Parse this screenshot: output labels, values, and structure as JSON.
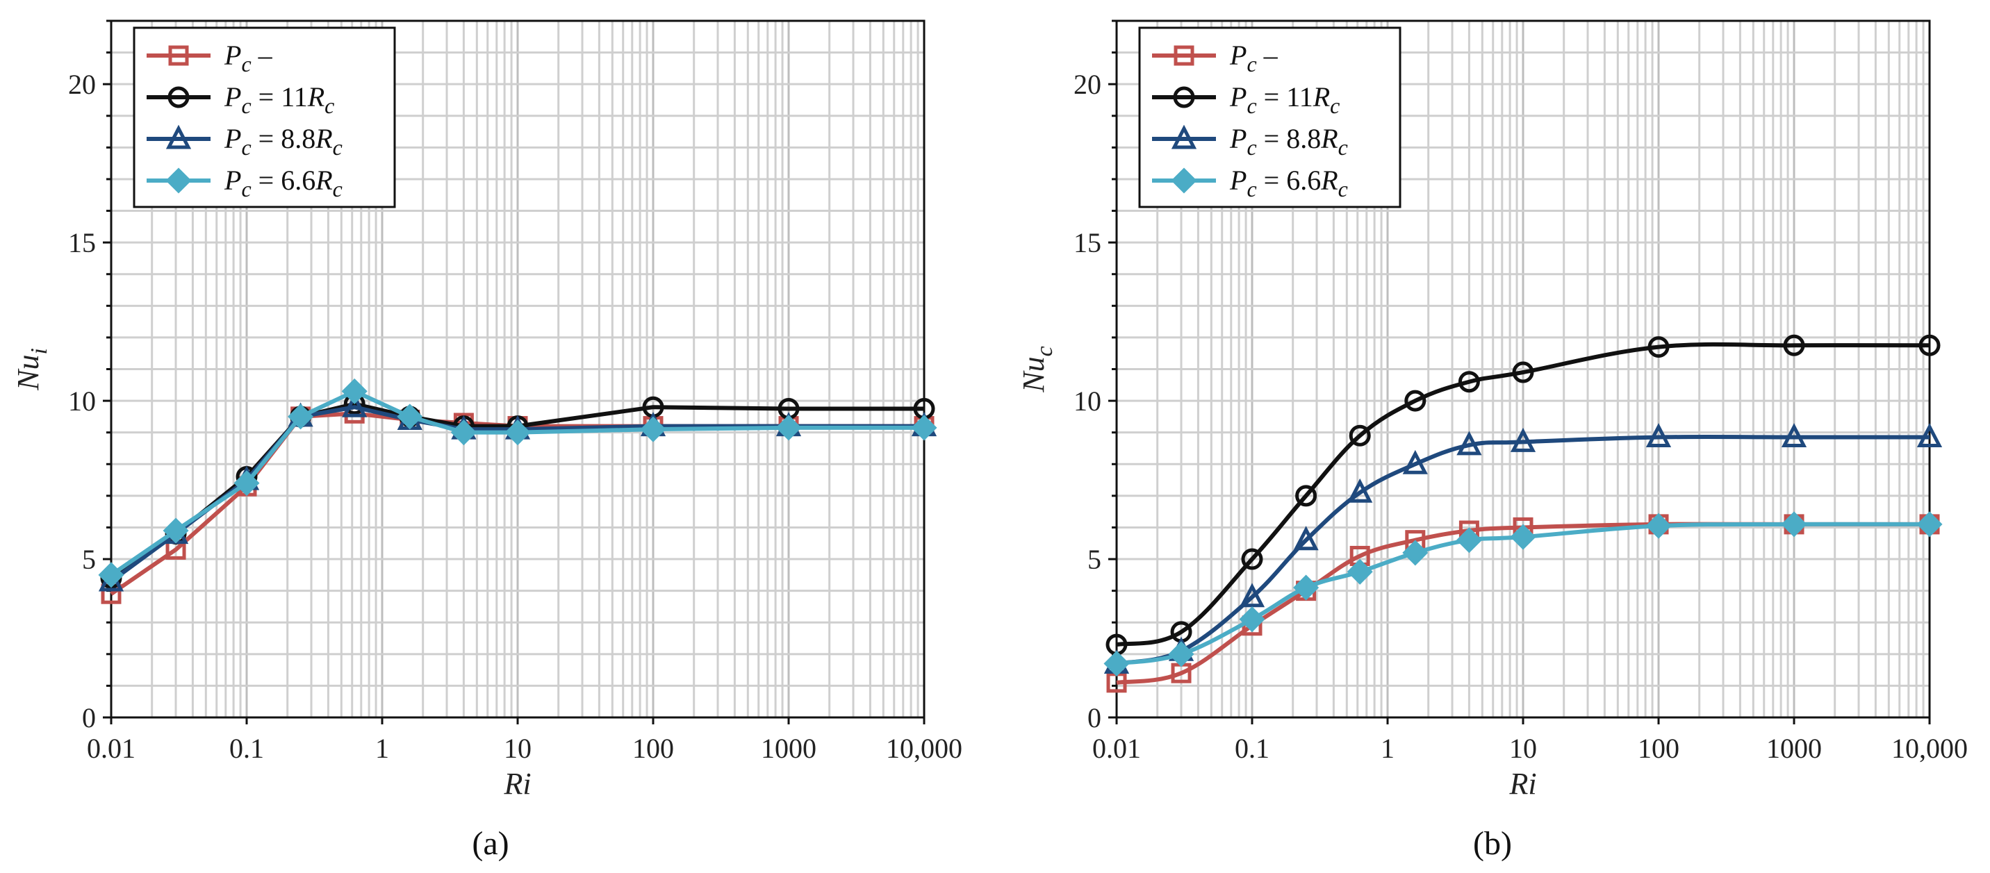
{
  "chart_data": [
    {
      "type": "line",
      "panel_label": "(a)",
      "xscale": "log",
      "xlabel": "Ri",
      "ylabel": "Nu",
      "ylabel_sub": "i",
      "xlim": [
        0.01,
        10000
      ],
      "ylim": [
        0,
        22
      ],
      "yticks": [
        0,
        5,
        10,
        15,
        20
      ],
      "xticks": [
        0.01,
        0.1,
        1,
        10,
        100,
        1000,
        10000
      ],
      "xtick_labels": [
        "0.01",
        "0.1",
        "1",
        "10",
        "100",
        "1000",
        "10,000"
      ],
      "grid": true,
      "legend_position": "top-left",
      "x": [
        0.01,
        0.03,
        0.1,
        0.25,
        0.625,
        1.6,
        4,
        10,
        100,
        1000,
        10000
      ],
      "series": [
        {
          "name": "P_c -",
          "label_main": "P",
          "label_sub": "c",
          "label_rest": " –",
          "color": "#c0504d",
          "marker": "square",
          "values": [
            3.9,
            5.3,
            7.3,
            9.5,
            9.6,
            9.4,
            9.3,
            9.2,
            9.2,
            9.2,
            9.2
          ]
        },
        {
          "name": "P_c = 11R_c",
          "label_main": "P",
          "label_sub": "c",
          "label_rest": " = 11R",
          "label_sub2": "c",
          "color": "#111111",
          "marker": "circle",
          "values": [
            4.4,
            5.8,
            7.6,
            9.5,
            9.9,
            9.5,
            9.2,
            9.2,
            9.8,
            9.75,
            9.75
          ]
        },
        {
          "name": "P_c = 8.8R_c",
          "label_main": "P",
          "label_sub": "c",
          "label_rest": " = 8.8R",
          "label_sub2": "c",
          "color": "#1f497d",
          "marker": "triangle",
          "values": [
            4.3,
            5.8,
            7.5,
            9.5,
            9.8,
            9.4,
            9.1,
            9.1,
            9.2,
            9.2,
            9.2
          ]
        },
        {
          "name": "P_c = 6.6R_c",
          "label_main": "P",
          "label_sub": "c",
          "label_rest": " = 6.6R",
          "label_sub2": "c",
          "color": "#4bacc6",
          "marker": "diamond",
          "values": [
            4.5,
            5.9,
            7.4,
            9.5,
            10.3,
            9.5,
            9.0,
            9.0,
            9.1,
            9.15,
            9.15
          ]
        }
      ]
    },
    {
      "type": "line",
      "panel_label": "(b)",
      "xscale": "log",
      "xlabel": "Ri",
      "ylabel": "Nu",
      "ylabel_sub": "c",
      "xlim": [
        0.01,
        10000
      ],
      "ylim": [
        0,
        22
      ],
      "yticks": [
        0,
        5,
        10,
        15,
        20
      ],
      "xticks": [
        0.01,
        0.1,
        1,
        10,
        100,
        1000,
        10000
      ],
      "xtick_labels": [
        "0.01",
        "0.1",
        "1",
        "10",
        "100",
        "1000",
        "10,000"
      ],
      "grid": true,
      "legend_position": "top-left",
      "x": [
        0.01,
        0.03,
        0.1,
        0.25,
        0.625,
        1.6,
        4,
        10,
        100,
        1000,
        10000
      ],
      "series": [
        {
          "name": "P_c -",
          "label_main": "P",
          "label_sub": "c",
          "label_rest": " –",
          "color": "#c0504d",
          "marker": "square",
          "values": [
            1.1,
            1.4,
            2.9,
            4.0,
            5.1,
            5.6,
            5.9,
            6.0,
            6.1,
            6.1,
            6.1
          ]
        },
        {
          "name": "P_c = 11R_c",
          "label_main": "P",
          "label_sub": "c",
          "label_rest": " = 11R",
          "label_sub2": "c",
          "color": "#111111",
          "marker": "circle",
          "values": [
            2.3,
            2.7,
            5.0,
            7.0,
            8.9,
            10.0,
            10.6,
            10.9,
            11.7,
            11.75,
            11.75
          ]
        },
        {
          "name": "P_c = 8.8R_c",
          "label_main": "P",
          "label_sub": "c",
          "label_rest": " = 8.8R",
          "label_sub2": "c",
          "color": "#1f497d",
          "marker": "triangle",
          "values": [
            1.7,
            2.1,
            3.8,
            5.6,
            7.1,
            8.0,
            8.6,
            8.7,
            8.85,
            8.85,
            8.85
          ]
        },
        {
          "name": "P_c = 6.6R_c",
          "label_main": "P",
          "label_sub": "c",
          "label_rest": " = 6.6R",
          "label_sub2": "c",
          "color": "#4bacc6",
          "marker": "diamond",
          "values": [
            1.7,
            2.0,
            3.1,
            4.1,
            4.6,
            5.2,
            5.6,
            5.7,
            6.05,
            6.1,
            6.1
          ]
        }
      ]
    }
  ]
}
